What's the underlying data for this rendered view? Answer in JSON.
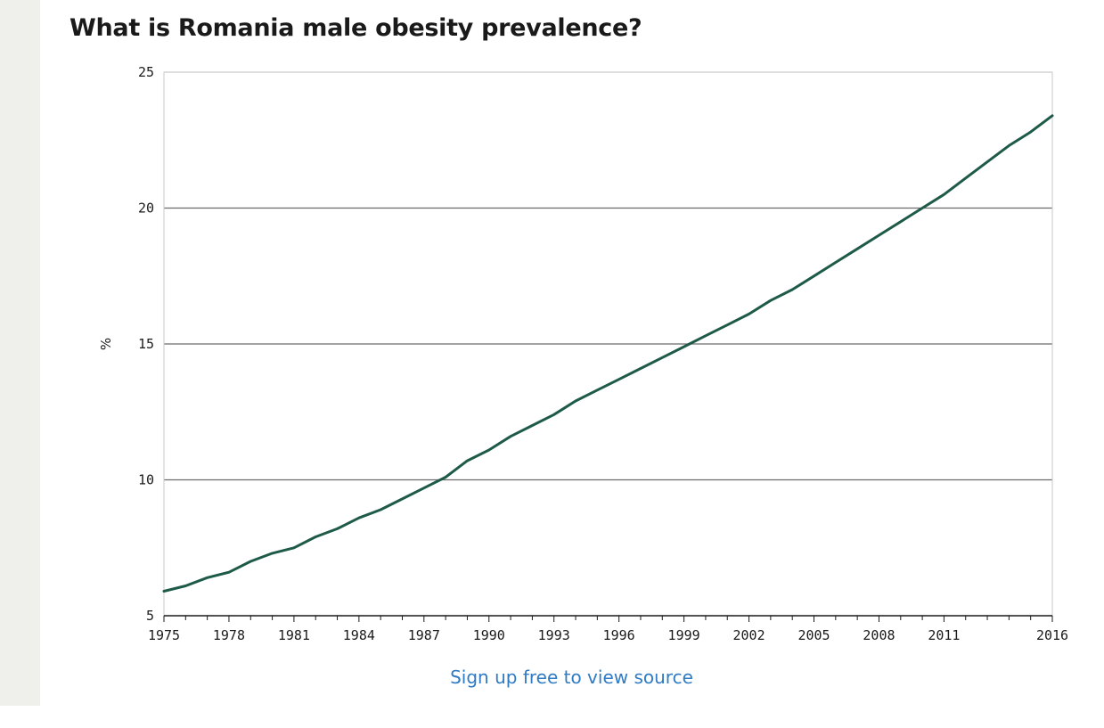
{
  "title": "What is Romania male obesity prevalence?",
  "source_link": "Sign up free to view source",
  "colors": {
    "line": "#1e5a48",
    "grid": "#6b6b6b",
    "link": "#2f7bc4",
    "rail": "#efefeb"
  },
  "chart_data": {
    "type": "line",
    "title": "What is Romania male obesity prevalence?",
    "xlabel": "",
    "ylabel": "%",
    "xlim": [
      1975,
      2016
    ],
    "ylim": [
      5,
      25
    ],
    "yticks": [
      5,
      10,
      15,
      20,
      25
    ],
    "xticks": [
      1975,
      1978,
      1981,
      1984,
      1987,
      1990,
      1993,
      1996,
      1999,
      2002,
      2005,
      2008,
      2011,
      2016
    ],
    "grid": "horizontal",
    "series": [
      {
        "x": [
          1975,
          1976,
          1977,
          1978,
          1979,
          1980,
          1981,
          1982,
          1983,
          1984,
          1985,
          1986,
          1987,
          1988,
          1989,
          1990,
          1991,
          1992,
          1993,
          1994,
          1995,
          1996,
          1997,
          1998,
          1999,
          2000,
          2001,
          2002,
          2003,
          2004,
          2005,
          2006,
          2007,
          2008,
          2009,
          2010,
          2011,
          2012,
          2013,
          2014,
          2015,
          2016
        ],
        "values": [
          5.9,
          6.1,
          6.4,
          6.6,
          7.0,
          7.3,
          7.5,
          7.9,
          8.2,
          8.6,
          8.9,
          9.3,
          9.7,
          10.1,
          10.7,
          11.1,
          11.6,
          12.0,
          12.4,
          12.9,
          13.3,
          13.7,
          14.1,
          14.5,
          14.9,
          15.3,
          15.7,
          16.1,
          16.6,
          17.0,
          17.5,
          18.0,
          18.5,
          19.0,
          19.5,
          20.0,
          20.5,
          21.1,
          21.7,
          22.3,
          22.8,
          23.4
        ]
      }
    ]
  }
}
